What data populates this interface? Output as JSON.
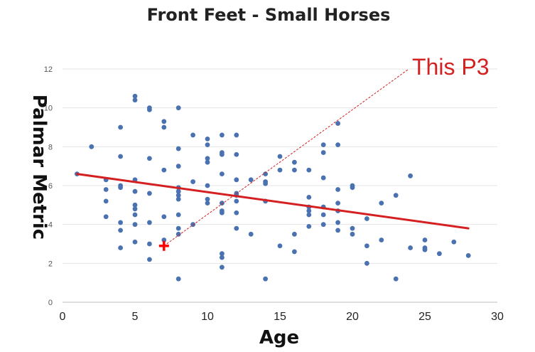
{
  "chart_data": {
    "type": "scatter",
    "title": "Front Feet - Small Horses",
    "xlabel": "Age",
    "ylabel": "Palmar Metric",
    "xlim": [
      0,
      30
    ],
    "ylim": [
      0,
      12
    ],
    "x_ticks": [
      "0",
      "5",
      "10",
      "15",
      "20",
      "25",
      "30"
    ],
    "y_ticks": [
      "0",
      "2",
      "4",
      "6",
      "8",
      "10",
      "12"
    ],
    "grid": "horizontal",
    "colors": {
      "points": "#4a72b0",
      "trendline": "#d42020",
      "highlight": "#ff0000",
      "annotation": "#d42020"
    },
    "series": [
      {
        "points": [
          [
            1,
            6.6
          ],
          [
            2,
            8.0
          ],
          [
            3,
            6.3
          ],
          [
            3,
            5.8
          ],
          [
            3,
            5.2
          ],
          [
            3,
            4.4
          ],
          [
            4,
            9.0
          ],
          [
            4,
            7.5
          ],
          [
            4,
            6.0
          ],
          [
            4,
            5.9
          ],
          [
            4,
            4.1
          ],
          [
            4,
            3.7
          ],
          [
            4,
            2.8
          ],
          [
            5,
            10.6
          ],
          [
            5,
            10.4
          ],
          [
            5,
            6.3
          ],
          [
            5,
            5.7
          ],
          [
            5,
            5.0
          ],
          [
            5,
            4.8
          ],
          [
            5,
            4.5
          ],
          [
            5,
            4.0
          ],
          [
            5,
            3.1
          ],
          [
            6,
            10.0
          ],
          [
            6,
            9.9
          ],
          [
            6,
            7.4
          ],
          [
            6,
            5.6
          ],
          [
            6,
            4.1
          ],
          [
            6,
            3.0
          ],
          [
            6,
            2.2
          ],
          [
            7,
            9.3
          ],
          [
            7,
            9.0
          ],
          [
            7,
            6.8
          ],
          [
            7,
            4.4
          ],
          [
            7,
            3.2
          ],
          [
            8,
            10.0
          ],
          [
            8,
            7.9
          ],
          [
            8,
            7.0
          ],
          [
            8,
            5.9
          ],
          [
            8,
            5.7
          ],
          [
            8,
            5.5
          ],
          [
            8,
            5.3
          ],
          [
            8,
            4.5
          ],
          [
            8,
            3.8
          ],
          [
            8,
            3.5
          ],
          [
            8,
            1.2
          ],
          [
            9,
            8.6
          ],
          [
            9,
            6.2
          ],
          [
            9,
            4.0
          ],
          [
            10,
            8.4
          ],
          [
            10,
            8.1
          ],
          [
            10,
            7.4
          ],
          [
            10,
            7.2
          ],
          [
            10,
            6.0
          ],
          [
            10,
            5.3
          ],
          [
            10,
            5.1
          ],
          [
            11,
            8.6
          ],
          [
            11,
            7.7
          ],
          [
            11,
            7.6
          ],
          [
            11,
            6.6
          ],
          [
            11,
            5.1
          ],
          [
            11,
            4.7
          ],
          [
            11,
            4.6
          ],
          [
            11,
            2.5
          ],
          [
            11,
            2.3
          ],
          [
            11,
            1.8
          ],
          [
            12,
            8.6
          ],
          [
            12,
            7.6
          ],
          [
            12,
            6.3
          ],
          [
            12,
            5.6
          ],
          [
            12,
            5.5
          ],
          [
            12,
            5.2
          ],
          [
            12,
            4.6
          ],
          [
            12,
            3.8
          ],
          [
            13,
            6.3
          ],
          [
            13,
            3.5
          ],
          [
            14,
            6.6
          ],
          [
            14,
            6.2
          ],
          [
            14,
            6.1
          ],
          [
            14,
            5.2
          ],
          [
            14,
            1.2
          ],
          [
            15,
            7.5
          ],
          [
            15,
            6.8
          ],
          [
            15,
            2.9
          ],
          [
            16,
            7.2
          ],
          [
            16,
            6.8
          ],
          [
            16,
            3.5
          ],
          [
            16,
            2.6
          ],
          [
            17,
            6.8
          ],
          [
            17,
            5.4
          ],
          [
            17,
            4.9
          ],
          [
            17,
            4.7
          ],
          [
            17,
            4.5
          ],
          [
            17,
            3.9
          ],
          [
            18,
            8.1
          ],
          [
            18,
            7.7
          ],
          [
            18,
            6.4
          ],
          [
            18,
            4.9
          ],
          [
            18,
            4.5
          ],
          [
            18,
            4.0
          ],
          [
            19,
            9.2
          ],
          [
            19,
            8.1
          ],
          [
            19,
            5.8
          ],
          [
            19,
            5.1
          ],
          [
            19,
            4.7
          ],
          [
            19,
            4.1
          ],
          [
            19,
            3.7
          ],
          [
            20,
            6.0
          ],
          [
            20,
            5.9
          ],
          [
            20,
            3.8
          ],
          [
            20,
            3.5
          ],
          [
            21,
            4.3
          ],
          [
            21,
            2.9
          ],
          [
            21,
            2.0
          ],
          [
            22,
            5.1
          ],
          [
            22,
            3.2
          ],
          [
            23,
            5.5
          ],
          [
            23,
            1.2
          ],
          [
            24,
            6.5
          ],
          [
            24,
            2.8
          ],
          [
            25,
            3.2
          ],
          [
            25,
            2.8
          ],
          [
            25,
            2.7
          ],
          [
            26,
            2.5
          ],
          [
            27,
            3.1
          ],
          [
            28,
            2.4
          ]
        ]
      }
    ],
    "trendline": {
      "from": [
        1,
        6.6
      ],
      "to": [
        28,
        3.8
      ]
    },
    "highlight_point": {
      "x": 7,
      "y": 2.9,
      "marker": "cross"
    },
    "annotation": {
      "text": "This P3",
      "style": "dashed-leader"
    }
  }
}
